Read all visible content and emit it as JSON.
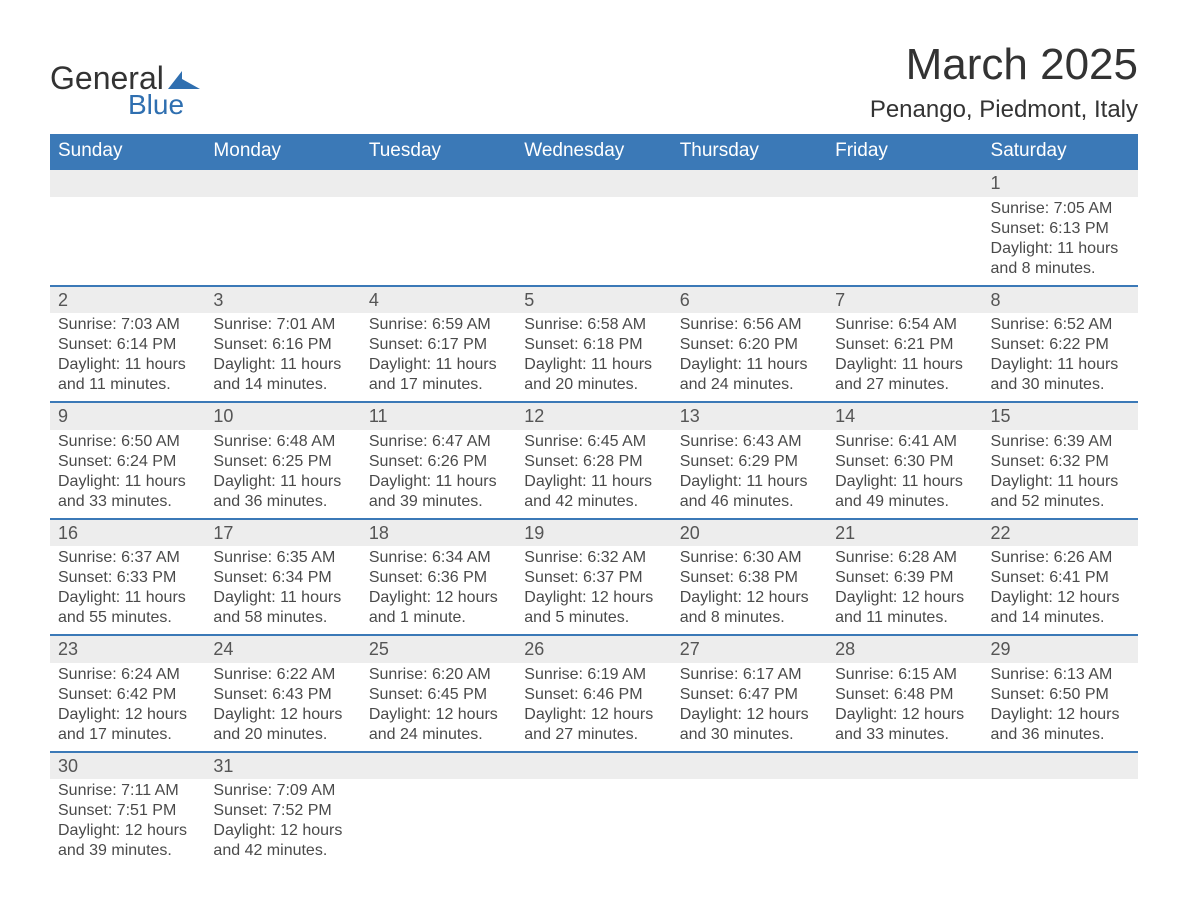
{
  "logo": {
    "word1": "General",
    "word2": "Blue"
  },
  "title": "March 2025",
  "location": "Penango, Piedmont, Italy",
  "colors": {
    "header_bg": "#3b79b7",
    "header_text": "#ffffff",
    "daynum_bg": "#ededed",
    "row_border": "#3b79b7",
    "text": "#4a4a4a",
    "title_text": "#333333"
  },
  "weekdays": [
    "Sunday",
    "Monday",
    "Tuesday",
    "Wednesday",
    "Thursday",
    "Friday",
    "Saturday"
  ],
  "weeks": [
    {
      "nums": [
        "",
        "",
        "",
        "",
        "",
        "",
        "1"
      ],
      "details": [
        null,
        null,
        null,
        null,
        null,
        null,
        {
          "sunrise": "Sunrise: 7:05 AM",
          "sunset": "Sunset: 6:13 PM",
          "day1": "Daylight: 11 hours",
          "day2": "and 8 minutes."
        }
      ]
    },
    {
      "nums": [
        "2",
        "3",
        "4",
        "5",
        "6",
        "7",
        "8"
      ],
      "details": [
        {
          "sunrise": "Sunrise: 7:03 AM",
          "sunset": "Sunset: 6:14 PM",
          "day1": "Daylight: 11 hours",
          "day2": "and 11 minutes."
        },
        {
          "sunrise": "Sunrise: 7:01 AM",
          "sunset": "Sunset: 6:16 PM",
          "day1": "Daylight: 11 hours",
          "day2": "and 14 minutes."
        },
        {
          "sunrise": "Sunrise: 6:59 AM",
          "sunset": "Sunset: 6:17 PM",
          "day1": "Daylight: 11 hours",
          "day2": "and 17 minutes."
        },
        {
          "sunrise": "Sunrise: 6:58 AM",
          "sunset": "Sunset: 6:18 PM",
          "day1": "Daylight: 11 hours",
          "day2": "and 20 minutes."
        },
        {
          "sunrise": "Sunrise: 6:56 AM",
          "sunset": "Sunset: 6:20 PM",
          "day1": "Daylight: 11 hours",
          "day2": "and 24 minutes."
        },
        {
          "sunrise": "Sunrise: 6:54 AM",
          "sunset": "Sunset: 6:21 PM",
          "day1": "Daylight: 11 hours",
          "day2": "and 27 minutes."
        },
        {
          "sunrise": "Sunrise: 6:52 AM",
          "sunset": "Sunset: 6:22 PM",
          "day1": "Daylight: 11 hours",
          "day2": "and 30 minutes."
        }
      ]
    },
    {
      "nums": [
        "9",
        "10",
        "11",
        "12",
        "13",
        "14",
        "15"
      ],
      "details": [
        {
          "sunrise": "Sunrise: 6:50 AM",
          "sunset": "Sunset: 6:24 PM",
          "day1": "Daylight: 11 hours",
          "day2": "and 33 minutes."
        },
        {
          "sunrise": "Sunrise: 6:48 AM",
          "sunset": "Sunset: 6:25 PM",
          "day1": "Daylight: 11 hours",
          "day2": "and 36 minutes."
        },
        {
          "sunrise": "Sunrise: 6:47 AM",
          "sunset": "Sunset: 6:26 PM",
          "day1": "Daylight: 11 hours",
          "day2": "and 39 minutes."
        },
        {
          "sunrise": "Sunrise: 6:45 AM",
          "sunset": "Sunset: 6:28 PM",
          "day1": "Daylight: 11 hours",
          "day2": "and 42 minutes."
        },
        {
          "sunrise": "Sunrise: 6:43 AM",
          "sunset": "Sunset: 6:29 PM",
          "day1": "Daylight: 11 hours",
          "day2": "and 46 minutes."
        },
        {
          "sunrise": "Sunrise: 6:41 AM",
          "sunset": "Sunset: 6:30 PM",
          "day1": "Daylight: 11 hours",
          "day2": "and 49 minutes."
        },
        {
          "sunrise": "Sunrise: 6:39 AM",
          "sunset": "Sunset: 6:32 PM",
          "day1": "Daylight: 11 hours",
          "day2": "and 52 minutes."
        }
      ]
    },
    {
      "nums": [
        "16",
        "17",
        "18",
        "19",
        "20",
        "21",
        "22"
      ],
      "details": [
        {
          "sunrise": "Sunrise: 6:37 AM",
          "sunset": "Sunset: 6:33 PM",
          "day1": "Daylight: 11 hours",
          "day2": "and 55 minutes."
        },
        {
          "sunrise": "Sunrise: 6:35 AM",
          "sunset": "Sunset: 6:34 PM",
          "day1": "Daylight: 11 hours",
          "day2": "and 58 minutes."
        },
        {
          "sunrise": "Sunrise: 6:34 AM",
          "sunset": "Sunset: 6:36 PM",
          "day1": "Daylight: 12 hours",
          "day2": "and 1 minute."
        },
        {
          "sunrise": "Sunrise: 6:32 AM",
          "sunset": "Sunset: 6:37 PM",
          "day1": "Daylight: 12 hours",
          "day2": "and 5 minutes."
        },
        {
          "sunrise": "Sunrise: 6:30 AM",
          "sunset": "Sunset: 6:38 PM",
          "day1": "Daylight: 12 hours",
          "day2": "and 8 minutes."
        },
        {
          "sunrise": "Sunrise: 6:28 AM",
          "sunset": "Sunset: 6:39 PM",
          "day1": "Daylight: 12 hours",
          "day2": "and 11 minutes."
        },
        {
          "sunrise": "Sunrise: 6:26 AM",
          "sunset": "Sunset: 6:41 PM",
          "day1": "Daylight: 12 hours",
          "day2": "and 14 minutes."
        }
      ]
    },
    {
      "nums": [
        "23",
        "24",
        "25",
        "26",
        "27",
        "28",
        "29"
      ],
      "details": [
        {
          "sunrise": "Sunrise: 6:24 AM",
          "sunset": "Sunset: 6:42 PM",
          "day1": "Daylight: 12 hours",
          "day2": "and 17 minutes."
        },
        {
          "sunrise": "Sunrise: 6:22 AM",
          "sunset": "Sunset: 6:43 PM",
          "day1": "Daylight: 12 hours",
          "day2": "and 20 minutes."
        },
        {
          "sunrise": "Sunrise: 6:20 AM",
          "sunset": "Sunset: 6:45 PM",
          "day1": "Daylight: 12 hours",
          "day2": "and 24 minutes."
        },
        {
          "sunrise": "Sunrise: 6:19 AM",
          "sunset": "Sunset: 6:46 PM",
          "day1": "Daylight: 12 hours",
          "day2": "and 27 minutes."
        },
        {
          "sunrise": "Sunrise: 6:17 AM",
          "sunset": "Sunset: 6:47 PM",
          "day1": "Daylight: 12 hours",
          "day2": "and 30 minutes."
        },
        {
          "sunrise": "Sunrise: 6:15 AM",
          "sunset": "Sunset: 6:48 PM",
          "day1": "Daylight: 12 hours",
          "day2": "and 33 minutes."
        },
        {
          "sunrise": "Sunrise: 6:13 AM",
          "sunset": "Sunset: 6:50 PM",
          "day1": "Daylight: 12 hours",
          "day2": "and 36 minutes."
        }
      ]
    },
    {
      "nums": [
        "30",
        "31",
        "",
        "",
        "",
        "",
        ""
      ],
      "details": [
        {
          "sunrise": "Sunrise: 7:11 AM",
          "sunset": "Sunset: 7:51 PM",
          "day1": "Daylight: 12 hours",
          "day2": "and 39 minutes."
        },
        {
          "sunrise": "Sunrise: 7:09 AM",
          "sunset": "Sunset: 7:52 PM",
          "day1": "Daylight: 12 hours",
          "day2": "and 42 minutes."
        },
        null,
        null,
        null,
        null,
        null
      ]
    }
  ]
}
